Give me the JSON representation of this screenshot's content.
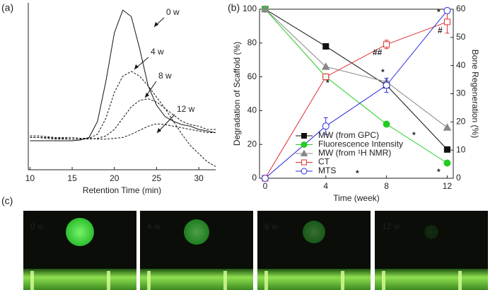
{
  "chart_data": [
    {
      "type": "line",
      "xlabel": "Retention Time (min)",
      "x": [
        10,
        11,
        12,
        13,
        14,
        15,
        16,
        17,
        18,
        19,
        20,
        21,
        22,
        23,
        24,
        25,
        26,
        27,
        28,
        29,
        30,
        31,
        32
      ],
      "xlim": [
        9.8,
        32
      ],
      "xticks": [
        10,
        15,
        20,
        25,
        30
      ],
      "ylim": [
        0,
        100
      ],
      "series": [
        {
          "name": "0 w",
          "color": "#111111",
          "dash": false,
          "values": [
            18,
            18,
            18,
            18,
            18,
            18,
            18.5,
            20,
            30,
            55,
            85,
            99,
            95,
            75,
            52,
            40,
            33,
            30,
            28,
            27,
            25,
            24,
            23
          ]
        },
        {
          "name": "4 w",
          "color": "#111111",
          "dash": true,
          "values": [
            20,
            20,
            19.5,
            19,
            19,
            19,
            19,
            19.5,
            22,
            32,
            48,
            58,
            61,
            58,
            52,
            45,
            38,
            30,
            22,
            15,
            10,
            5,
            2
          ]
        },
        {
          "name": "8 w",
          "color": "#111111",
          "dash": true,
          "values": [
            20,
            20,
            20,
            19.5,
            19.5,
            19,
            19,
            19,
            19.5,
            21,
            25,
            32,
            39,
            43,
            44,
            42,
            38,
            34,
            30,
            28,
            27,
            25,
            25
          ]
        },
        {
          "name": "12 w",
          "color": "#111111",
          "dash": true,
          "values": [
            21,
            21,
            20.5,
            20,
            20,
            20,
            19.5,
            19.5,
            19,
            19,
            19.5,
            20,
            22,
            24.5,
            27,
            28.5,
            28,
            27,
            26,
            25,
            24,
            23,
            23
          ]
        }
      ]
    },
    {
      "type": "line",
      "xlabel": "Time (week)",
      "ylabel": "Degradation of Scaffold (%)",
      "y2label": "Bone Regeneration (%)",
      "x": [
        0,
        4,
        8,
        12
      ],
      "xlim": [
        -0.37,
        12.4
      ],
      "xticks": [
        0,
        4,
        8,
        12
      ],
      "ylim": [
        0,
        100
      ],
      "yticks": [
        0,
        20,
        40,
        60,
        80,
        100
      ],
      "y2lim": [
        0,
        60
      ],
      "y2ticks": [
        0,
        10,
        20,
        30,
        40,
        50,
        60
      ],
      "legend": "lower center",
      "series": [
        {
          "name": "MW (from GPC)",
          "color": "#111111",
          "marker": "square",
          "filled": true,
          "values": [
            100,
            78,
            55,
            17
          ]
        },
        {
          "name": "Fluorescence Intensity",
          "color": "#22cc22",
          "marker": "circle",
          "filled": true,
          "values": [
            100,
            60,
            32,
            9
          ]
        },
        {
          "name": "MW (from ¹H NMR)",
          "color": "#888888",
          "marker": "triangle",
          "filled": true,
          "values": [
            100,
            66,
            57,
            30
          ]
        },
        {
          "name": "CT",
          "color": "#e03030",
          "marker": "square",
          "filled": false,
          "axis": "y2",
          "values": [
            0,
            36,
            47.5,
            55.5
          ],
          "errors": [
            0,
            1,
            1.5,
            4
          ]
        },
        {
          "name": "MTS",
          "color": "#2a2ae0",
          "marker": "circle",
          "filled": false,
          "axis": "y2",
          "values": [
            0,
            18.5,
            33,
            59.5
          ],
          "errors": [
            0,
            3,
            2.5,
            1
          ]
        }
      ],
      "annotations": [
        {
          "text": "*",
          "color": "#2a2ae0"
        },
        {
          "text": "*",
          "color": "#22aa55"
        },
        {
          "text": "##",
          "color": "#e03030"
        },
        {
          "text": "*",
          "color": "#2a2ae0"
        },
        {
          "text": "*",
          "color": "#22aa55"
        },
        {
          "text": "*",
          "color": "#2a2ae0"
        },
        {
          "text": "#",
          "color": "#e03030"
        },
        {
          "text": "*",
          "color": "#22aa55"
        }
      ]
    }
  ],
  "panel_labels": [
    "(a)",
    "(b)",
    "(c)"
  ],
  "photos": [
    "0 w",
    "4 w",
    "8 w",
    "12 w"
  ]
}
